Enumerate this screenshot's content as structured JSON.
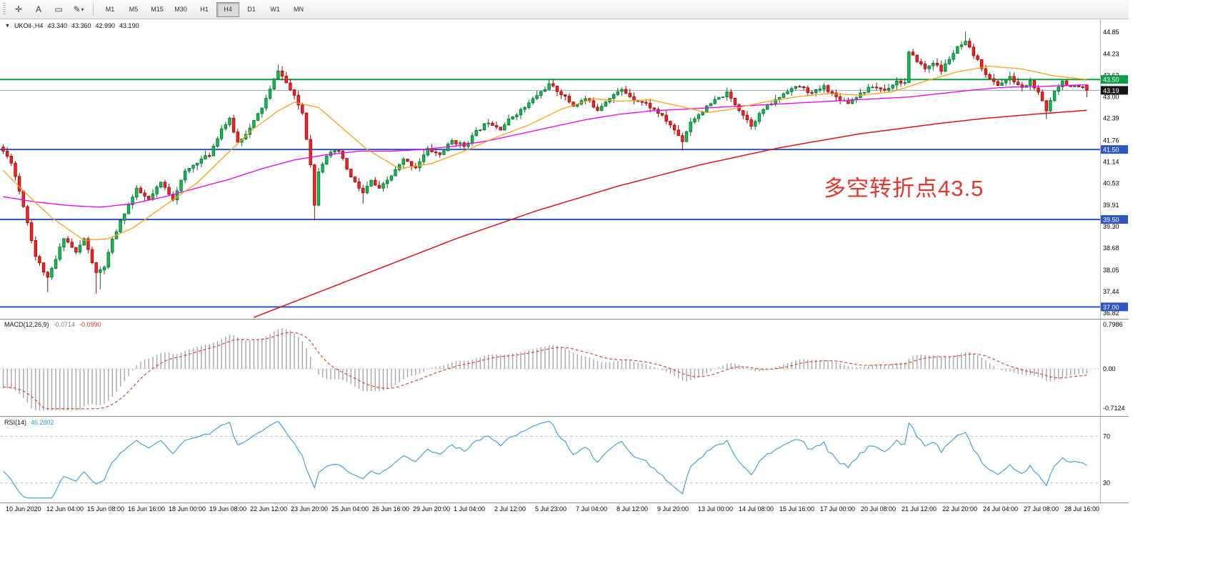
{
  "toolbar": {
    "tools": [
      {
        "name": "crosshair-tool",
        "glyph": "✛"
      },
      {
        "name": "text-tool",
        "glyph": "A"
      },
      {
        "name": "rectangle-tool",
        "glyph": "▭"
      },
      {
        "name": "draw-tool",
        "glyph": "✎",
        "caret": "▾"
      }
    ],
    "timeframes": [
      {
        "label": "M1"
      },
      {
        "label": "M5"
      },
      {
        "label": "M15"
      },
      {
        "label": "M30"
      },
      {
        "label": "H1"
      },
      {
        "label": "H4",
        "active": true
      },
      {
        "label": "D1"
      },
      {
        "label": "W1"
      },
      {
        "label": "MN"
      }
    ]
  },
  "chart_data": {
    "type": "candlestick",
    "title": "UKOil-,H4",
    "dropdown_glyph": "▼",
    "quote": {
      "open": "43.340",
      "high": "43.360",
      "low": "42.990",
      "close": "43.190"
    },
    "price_range": {
      "min": 36.7,
      "max": 45.2
    },
    "price_axis_ticks": [
      "44.85",
      "44.23",
      "43.62",
      "43.00",
      "42.39",
      "41.76",
      "41.14",
      "40.53",
      "39.91",
      "39.30",
      "38.68",
      "38.05",
      "37.44",
      "36.82"
    ],
    "time_labels": [
      "10 Jun 2020",
      "12 Jun 04:00",
      "15 Jun 08:00",
      "16 Jun 16:00",
      "18 Jun 00:00",
      "19 Jun 08:00",
      "22 Jun 12:00",
      "23 Jun 20:00",
      "25 Jun 04:00",
      "26 Jun 16:00",
      "29 Jun 20:00",
      "1 Jul 04:00",
      "2 Jul 12:00",
      "5 Jul 23:00",
      "7 Jul 04:00",
      "8 Jul 12:00",
      "9 Jul 20:00",
      "13 Jul 00:00",
      "14 Jul 08:00",
      "15 Jul 16:00",
      "17 Jul 00:00",
      "20 Jul 08:00",
      "21 Jul 12:00",
      "22 Jul 20:00",
      "24 Jul 04:00",
      "27 Jul 08:00",
      "28 Jul 16:00"
    ],
    "candles": {
      "count": 269,
      "seed": 11,
      "noise": 0.05,
      "wick": 0.14,
      "up_color": "#0fbf4e",
      "up_stroke": "#056b2e",
      "down_color": "#fd2020",
      "down_stroke": "#8f0808",
      "last_ohlc": [
        43.34,
        43.36,
        42.99,
        43.19
      ],
      "anchors": [
        [
          0,
          41.45
        ],
        [
          2,
          41.15
        ],
        [
          5,
          39.9
        ],
        [
          8,
          38.45
        ],
        [
          11,
          37.8
        ],
        [
          13,
          38.35
        ],
        [
          15,
          39.0
        ],
        [
          18,
          38.55
        ],
        [
          20,
          38.95
        ],
        [
          23,
          37.95
        ],
        [
          25,
          38.15
        ],
        [
          27,
          38.9
        ],
        [
          30,
          39.7
        ],
        [
          33,
          40.35
        ],
        [
          36,
          40.05
        ],
        [
          39,
          40.55
        ],
        [
          42,
          40.1
        ],
        [
          45,
          40.85
        ],
        [
          48,
          41.15
        ],
        [
          51,
          41.35
        ],
        [
          54,
          42.1
        ],
        [
          56,
          42.35
        ],
        [
          58,
          41.7
        ],
        [
          61,
          42.1
        ],
        [
          64,
          42.7
        ],
        [
          66,
          43.2
        ],
        [
          68,
          43.78
        ],
        [
          70,
          43.4
        ],
        [
          72,
          43.0
        ],
        [
          74,
          42.55
        ],
        [
          76,
          41.1
        ],
        [
          77,
          39.9
        ],
        [
          78,
          40.9
        ],
        [
          80,
          41.35
        ],
        [
          83,
          41.45
        ],
        [
          86,
          40.7
        ],
        [
          89,
          40.25
        ],
        [
          91,
          40.6
        ],
        [
          93,
          40.35
        ],
        [
          96,
          40.75
        ],
        [
          99,
          41.2
        ],
        [
          102,
          41.0
        ],
        [
          105,
          41.5
        ],
        [
          108,
          41.35
        ],
        [
          111,
          41.75
        ],
        [
          114,
          41.6
        ],
        [
          117,
          42.0
        ],
        [
          120,
          42.3
        ],
        [
          123,
          42.1
        ],
        [
          126,
          42.45
        ],
        [
          129,
          42.7
        ],
        [
          132,
          43.05
        ],
        [
          135,
          43.35
        ],
        [
          138,
          43.1
        ],
        [
          141,
          42.75
        ],
        [
          144,
          42.95
        ],
        [
          147,
          42.65
        ],
        [
          150,
          43.0
        ],
        [
          153,
          43.2
        ],
        [
          156,
          42.95
        ],
        [
          159,
          42.8
        ],
        [
          162,
          42.55
        ],
        [
          165,
          42.2
        ],
        [
          168,
          41.75
        ],
        [
          170,
          42.3
        ],
        [
          173,
          42.6
        ],
        [
          176,
          42.9
        ],
        [
          179,
          43.1
        ],
        [
          182,
          42.65
        ],
        [
          185,
          42.2
        ],
        [
          188,
          42.65
        ],
        [
          191,
          42.9
        ],
        [
          194,
          43.2
        ],
        [
          197,
          43.3
        ],
        [
          200,
          43.1
        ],
        [
          203,
          43.3
        ],
        [
          206,
          43.0
        ],
        [
          209,
          42.85
        ],
        [
          212,
          43.1
        ],
        [
          215,
          43.3
        ],
        [
          218,
          43.2
        ],
        [
          221,
          43.45
        ],
        [
          223,
          43.4
        ],
        [
          224,
          44.25
        ],
        [
          226,
          44.05
        ],
        [
          228,
          43.8
        ],
        [
          230,
          44.0
        ],
        [
          232,
          43.75
        ],
        [
          234,
          44.1
        ],
        [
          236,
          44.4
        ],
        [
          238,
          44.55
        ],
        [
          240,
          44.2
        ],
        [
          242,
          43.85
        ],
        [
          244,
          43.5
        ],
        [
          246,
          43.35
        ],
        [
          249,
          43.55
        ],
        [
          252,
          43.25
        ],
        [
          254,
          43.45
        ],
        [
          256,
          43.1
        ],
        [
          258,
          42.6
        ],
        [
          260,
          43.2
        ],
        [
          262,
          43.45
        ],
        [
          264,
          43.3
        ],
        [
          266,
          43.25
        ],
        [
          268,
          43.19
        ]
      ],
      "force_high": [
        [
          68,
          43.93
        ],
        [
          136,
          43.52
        ],
        [
          224,
          44.3
        ],
        [
          238,
          44.87
        ],
        [
          239,
          44.6
        ]
      ],
      "force_low": [
        [
          11,
          37.42
        ],
        [
          23,
          37.38
        ],
        [
          24,
          37.5
        ],
        [
          77,
          39.47
        ],
        [
          89,
          39.95
        ],
        [
          168,
          41.47
        ],
        [
          258,
          42.37
        ]
      ]
    },
    "horizontal_lines": [
      {
        "name": "resistance-line-43-50",
        "price": 43.5,
        "color": "#0f9d45",
        "width": 2,
        "tag": "43.50",
        "tag_bg": "#0f9d45"
      },
      {
        "name": "bid-price-line",
        "price": 43.19,
        "color": "#8fa6ba",
        "width": 1,
        "tag": "43.19",
        "tag_bg": "#151515"
      },
      {
        "name": "support-line-41-50",
        "price": 41.5,
        "color": "#2f55c4",
        "width": 2,
        "tag": "41.50",
        "tag_bg": "#2f55c4"
      },
      {
        "name": "support-line-39-50",
        "price": 39.5,
        "color": "#2f55c4",
        "width": 2,
        "tag": "39.50",
        "tag_bg": "#2f55c4"
      },
      {
        "name": "support-line-37-00",
        "price": 37.0,
        "color": "#2f55c4",
        "width": 2,
        "tag": "37.00",
        "tag_bg": "#2f55c4"
      }
    ],
    "moving_averages": [
      {
        "name": "ma-slow-red",
        "color": "#d81616",
        "width": 1.5,
        "anchors": [
          [
            62,
            36.7
          ],
          [
            72,
            37.15
          ],
          [
            82,
            37.6
          ],
          [
            92,
            38.05
          ],
          [
            102,
            38.5
          ],
          [
            112,
            38.95
          ],
          [
            122,
            39.35
          ],
          [
            132,
            39.75
          ],
          [
            142,
            40.1
          ],
          [
            152,
            40.45
          ],
          [
            162,
            40.75
          ],
          [
            172,
            41.05
          ],
          [
            182,
            41.3
          ],
          [
            192,
            41.55
          ],
          [
            202,
            41.75
          ],
          [
            212,
            41.95
          ],
          [
            222,
            42.1
          ],
          [
            232,
            42.25
          ],
          [
            242,
            42.38
          ],
          [
            252,
            42.48
          ],
          [
            260,
            42.55
          ],
          [
            268,
            42.62
          ]
        ]
      },
      {
        "name": "ma-mid-magenta",
        "color": "#ee00ee",
        "width": 1.3,
        "anchors": [
          [
            0,
            40.15
          ],
          [
            8,
            40.0
          ],
          [
            16,
            39.9
          ],
          [
            24,
            39.85
          ],
          [
            32,
            39.95
          ],
          [
            40,
            40.15
          ],
          [
            48,
            40.4
          ],
          [
            56,
            40.65
          ],
          [
            64,
            40.95
          ],
          [
            72,
            41.2
          ],
          [
            80,
            41.35
          ],
          [
            88,
            41.45
          ],
          [
            96,
            41.45
          ],
          [
            104,
            41.5
          ],
          [
            112,
            41.6
          ],
          [
            120,
            41.75
          ],
          [
            128,
            41.95
          ],
          [
            136,
            42.15
          ],
          [
            144,
            42.35
          ],
          [
            152,
            42.5
          ],
          [
            160,
            42.6
          ],
          [
            168,
            42.65
          ],
          [
            176,
            42.7
          ],
          [
            184,
            42.75
          ],
          [
            192,
            42.8
          ],
          [
            200,
            42.85
          ],
          [
            208,
            42.9
          ],
          [
            216,
            42.95
          ],
          [
            224,
            43.0
          ],
          [
            232,
            43.1
          ],
          [
            240,
            43.2
          ],
          [
            248,
            43.28
          ],
          [
            256,
            43.3
          ],
          [
            268,
            43.35
          ]
        ]
      },
      {
        "name": "ma-fast-orange",
        "color": "#f6a21c",
        "width": 1.3,
        "anchors": [
          [
            0,
            40.9
          ],
          [
            6,
            40.2
          ],
          [
            12,
            39.55
          ],
          [
            20,
            38.9
          ],
          [
            26,
            38.95
          ],
          [
            32,
            39.25
          ],
          [
            40,
            39.9
          ],
          [
            48,
            40.55
          ],
          [
            56,
            41.45
          ],
          [
            62,
            42.1
          ],
          [
            68,
            42.6
          ],
          [
            72,
            42.85
          ],
          [
            78,
            42.7
          ],
          [
            84,
            42.1
          ],
          [
            90,
            41.5
          ],
          [
            98,
            40.95
          ],
          [
            106,
            41.1
          ],
          [
            114,
            41.45
          ],
          [
            122,
            41.85
          ],
          [
            130,
            42.2
          ],
          [
            138,
            42.65
          ],
          [
            146,
            42.95
          ],
          [
            152,
            42.88
          ],
          [
            160,
            42.92
          ],
          [
            168,
            42.72
          ],
          [
            174,
            42.55
          ],
          [
            180,
            42.65
          ],
          [
            188,
            42.85
          ],
          [
            196,
            43.0
          ],
          [
            204,
            43.1
          ],
          [
            212,
            43.05
          ],
          [
            220,
            43.15
          ],
          [
            228,
            43.45
          ],
          [
            236,
            43.72
          ],
          [
            244,
            43.88
          ],
          [
            252,
            43.8
          ],
          [
            260,
            43.6
          ],
          [
            268,
            43.5
          ]
        ]
      }
    ],
    "annotation": {
      "text": "多空转折点43.5",
      "color": "#e0382b"
    },
    "macd": {
      "name_label": "MACD(12,26,9)",
      "value_main": "-0.0714",
      "value_signal": "-0.0990",
      "axis_ticks": [
        {
          "label": "0.7986",
          "value": 0.7986
        },
        {
          "label": "0.00",
          "value": 0
        },
        {
          "label": "-0.7124",
          "value": -0.7124
        }
      ],
      "range_min": -0.8,
      "range_max": 0.85,
      "histogram_color": "#a6a6a6",
      "signal_color": "#d93a2e",
      "zero_line_color": "#c4c4c4"
    },
    "rsi": {
      "name_label": "RSI(14)",
      "value": "46.2802",
      "line_color": "#3a9ad9",
      "level_color": "#c0c0c0",
      "range_min": 15,
      "range_max": 85,
      "levels": [
        {
          "value": 70,
          "label": "70"
        },
        {
          "value": 30,
          "label": "30"
        }
      ]
    }
  }
}
